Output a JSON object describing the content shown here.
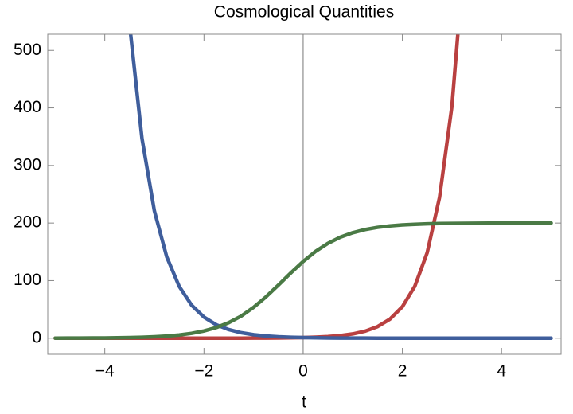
{
  "chart_data": {
    "type": "line",
    "title": "Cosmological Quantities",
    "x_label": "t",
    "x": [
      -5,
      -4.75,
      -4.5,
      -4.25,
      -4,
      -3.75,
      -3.5,
      -3.25,
      -3,
      -2.75,
      -2.5,
      -2.25,
      -2,
      -1.75,
      -1.5,
      -1.25,
      -1,
      -0.75,
      -0.5,
      -0.25,
      0,
      0.25,
      0.5,
      0.75,
      1,
      1.25,
      1.5,
      1.75,
      2,
      2.25,
      2.5,
      2.75,
      3,
      3.25,
      3.5,
      3.75,
      4,
      4.25,
      4.5,
      4.75,
      5
    ],
    "series": [
      {
        "name": "red",
        "color": "#b94040",
        "values": [
          0,
          0,
          0,
          0,
          0,
          0,
          0,
          0,
          0,
          0,
          0.01,
          0.01,
          0.02,
          0.03,
          0.05,
          0.08,
          0.14,
          0.22,
          0.37,
          0.61,
          1,
          1.65,
          2.72,
          4.48,
          7.39,
          12.18,
          20.09,
          33.12,
          54.6,
          90.02,
          148.41,
          244.69,
          403.43,
          665.14,
          null,
          null,
          null,
          null,
          null,
          null,
          null
        ]
      },
      {
        "name": "blue",
        "color": "#3f5e9c",
        "values": [
          null,
          null,
          null,
          null,
          null,
          854,
          545,
          347,
          221,
          141,
          90,
          57.4,
          36.6,
          23.3,
          14.9,
          9.49,
          6.05,
          3.86,
          2.46,
          1.57,
          1,
          0.64,
          0.41,
          0.26,
          0.17,
          0.11,
          0.07,
          0.04,
          0.03,
          0.02,
          0.01,
          0,
          0,
          0,
          0,
          0,
          0,
          0,
          0,
          0,
          0
        ]
      },
      {
        "name": "green",
        "color": "#4a7a45",
        "values": [
          0.08,
          0.12,
          0.19,
          0.29,
          0.44,
          0.68,
          1.04,
          1.58,
          2.41,
          3.66,
          5.55,
          8.37,
          12.5,
          18.5,
          27,
          38.3,
          53.5,
          71.7,
          92.2,
          113.3,
          133.3,
          150.7,
          164.8,
          175.5,
          183.2,
          188.7,
          192.5,
          195,
          196.7,
          197.8,
          198.6,
          199.1,
          199.4,
          199.6,
          199.7,
          199.8,
          199.9,
          199.9,
          199.9,
          200,
          200
        ]
      }
    ],
    "xlim": [
      -5.15,
      5.2
    ],
    "ylim": [
      -28,
      528
    ],
    "xticks": [
      {
        "value": -4,
        "label": "−4"
      },
      {
        "value": -2,
        "label": "−2"
      },
      0,
      2,
      4
    ],
    "yticks": [
      0,
      100,
      200,
      300,
      400,
      500
    ],
    "line_width": 4.5
  }
}
